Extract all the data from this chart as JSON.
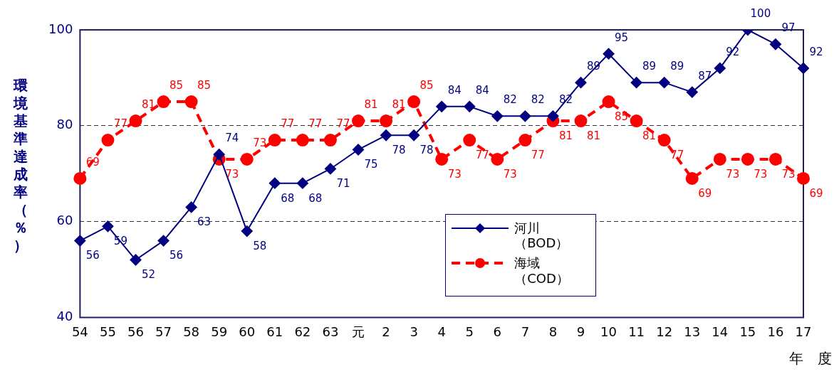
{
  "chart_data": {
    "type": "line",
    "xlabel": "年　度",
    "ylabel": "環境基準達成率（％）",
    "categories": [
      "54",
      "55",
      "56",
      "57",
      "58",
      "59",
      "60",
      "61",
      "62",
      "63",
      "元",
      "2",
      "3",
      "4",
      "5",
      "6",
      "7",
      "8",
      "9",
      "10",
      "11",
      "12",
      "13",
      "14",
      "15",
      "16",
      "17"
    ],
    "series": [
      {
        "name": "河川（BOD）",
        "color": "#000080",
        "marker": "diamond",
        "line_style": "solid",
        "values": [
          56,
          59,
          52,
          56,
          63,
          74,
          58,
          68,
          68,
          71,
          75,
          78,
          78,
          84,
          84,
          82,
          82,
          82,
          89,
          95,
          89,
          89,
          87,
          92,
          100,
          97,
          92
        ]
      },
      {
        "name": "海域（COD）",
        "color": "#ff0000",
        "marker": "circle",
        "line_style": "dashed",
        "values": [
          69,
          77,
          81,
          85,
          85,
          73,
          73,
          77,
          77,
          77,
          81,
          81,
          85,
          73,
          77,
          73,
          77,
          81,
          81,
          85,
          81,
          77,
          69,
          73,
          73,
          73,
          69
        ]
      }
    ],
    "ylim": [
      40,
      100
    ],
    "yticks": [
      40,
      60,
      80,
      100
    ],
    "grid": "y",
    "legend": "bottom right",
    "data_labels": true
  }
}
